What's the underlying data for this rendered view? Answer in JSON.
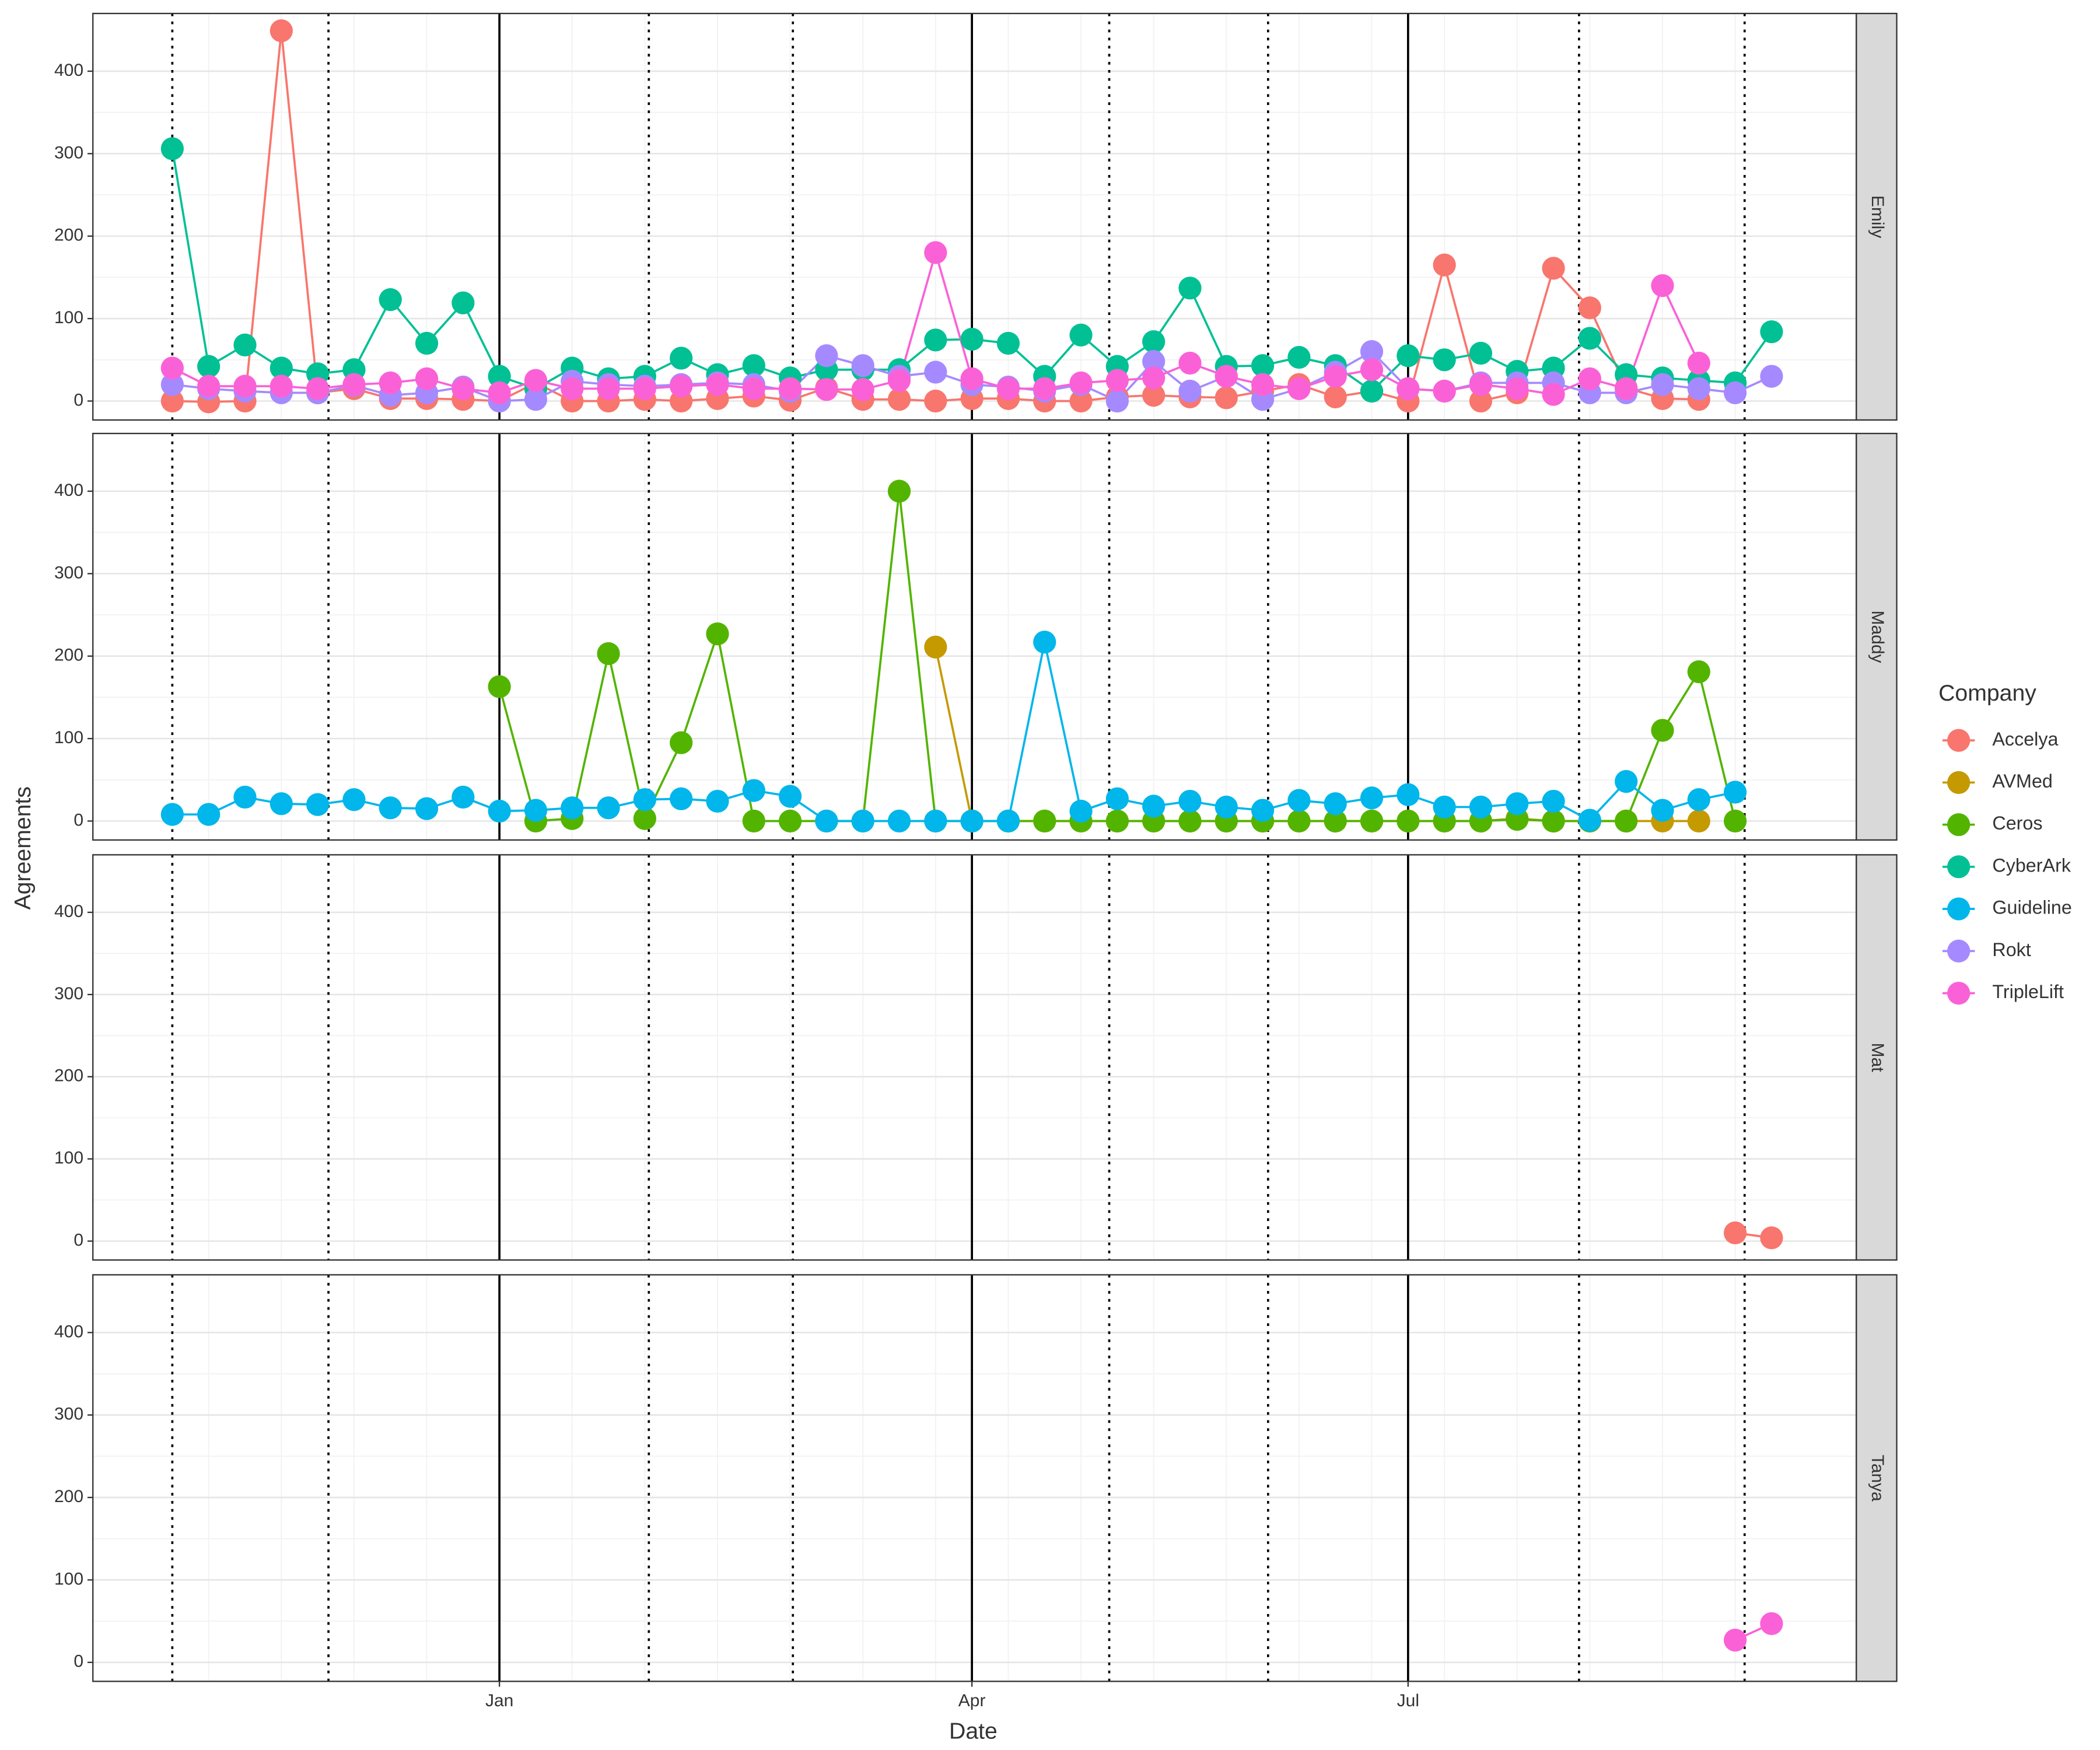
{
  "chart_data": {
    "type": "line",
    "x_label": "Date",
    "y_label": "Agreements",
    "legend_title": "Company",
    "legend": [
      {
        "name": "Accelya",
        "color": "#F8766D"
      },
      {
        "name": "AVMed",
        "color": "#C49A00"
      },
      {
        "name": "Ceros",
        "color": "#53B400"
      },
      {
        "name": "CyberArk",
        "color": "#00C094"
      },
      {
        "name": "Guideline",
        "color": "#00B6EB"
      },
      {
        "name": "Rokt",
        "color": "#A58AFF"
      },
      {
        "name": "TripleLift",
        "color": "#FB61D7"
      }
    ],
    "categories": [
      null,
      null,
      null,
      null,
      null,
      null,
      null,
      null,
      null,
      "Jan",
      null,
      null,
      null,
      null,
      null,
      null,
      null,
      null,
      null,
      null,
      null,
      null,
      "Apr",
      null,
      null,
      null,
      null,
      null,
      null,
      null,
      null,
      null,
      null,
      null,
      "Jul",
      null,
      null,
      null,
      null,
      null,
      null,
      null,
      null,
      null,
      null
    ],
    "ylim": [
      -23,
      470
    ],
    "yticks": [
      0,
      100,
      200,
      300,
      400
    ],
    "grid": true,
    "facets": [
      {
        "label": "Emily",
        "series": [
          {
            "name": "Accelya",
            "values": [
              0,
              -1,
              0,
              449,
              10,
              15,
              3,
              3,
              2,
              0,
              22,
              0,
              0,
              2,
              0,
              3,
              6,
              1,
              16,
              2,
              2,
              0,
              3,
              3,
              0,
              0,
              5,
              7,
              5,
              4,
              12,
              20,
              5,
              12,
              0,
              165,
              0,
              10,
              161,
              113,
              16,
              3,
              2,
              null,
              null
            ]
          },
          {
            "name": "CyberArk",
            "values": [
              306,
              42,
              68,
              40,
              33,
              38,
              123,
              70,
              119,
              30,
              15,
              40,
              27,
              30,
              52,
              32,
              43,
              28,
              38,
              38,
              38,
              74,
              75,
              70,
              30,
              80,
              42,
              72,
              137,
              42,
              43,
              53,
              43,
              12,
              55,
              50,
              58,
              36,
              40,
              76,
              32,
              28,
              25,
              22,
              84
            ]
          },
          {
            "name": "Rokt",
            "values": [
              20,
              15,
              12,
              10,
              10,
              19,
              7,
              10,
              17,
              0,
              2,
              24,
              20,
              18,
              20,
              22,
              20,
              12,
              55,
              43,
              30,
              35,
              20,
              17,
              12,
              20,
              0,
              48,
              12,
              30,
              2,
              15,
              35,
              60,
              15,
              12,
              22,
              22,
              22,
              10,
              10,
              20,
              15,
              10,
              30
            ]
          },
          {
            "name": "TripleLift",
            "values": [
              40,
              18,
              18,
              18,
              15,
              20,
              22,
              27,
              15,
              10,
              25,
              15,
              15,
              15,
              18,
              20,
              15,
              15,
              14,
              14,
              25,
              180,
              27,
              15,
              15,
              22,
              25,
              28,
              46,
              30,
              20,
              15,
              30,
              38,
              15,
              12,
              20,
              15,
              8,
              27,
              15,
              140,
              46,
              null,
              null
            ]
          }
        ]
      },
      {
        "label": "Maddy",
        "series": [
          {
            "name": "AVMed",
            "values": [
              null,
              null,
              null,
              null,
              null,
              null,
              null,
              null,
              null,
              null,
              null,
              null,
              null,
              null,
              null,
              null,
              null,
              null,
              null,
              null,
              null,
              211,
              0,
              0,
              0,
              0,
              0,
              0,
              0,
              0,
              0,
              0,
              0,
              0,
              0,
              0,
              0,
              3,
              0,
              0,
              0,
              0,
              0,
              null,
              null
            ]
          },
          {
            "name": "Ceros",
            "values": [
              null,
              null,
              null,
              null,
              null,
              null,
              null,
              null,
              null,
              163,
              0,
              3,
              203,
              3,
              95,
              227,
              0,
              0,
              0,
              0,
              400,
              0,
              0,
              0,
              0,
              0,
              0,
              0,
              0,
              0,
              0,
              0,
              0,
              0,
              0,
              0,
              0,
              2,
              0,
              0,
              0,
              110,
              181,
              0,
              null
            ]
          },
          {
            "name": "Guideline",
            "values": [
              8,
              8,
              29,
              21,
              20,
              26,
              16,
              15,
              29,
              12,
              13,
              16,
              16,
              26,
              27,
              24,
              37,
              30,
              0,
              0,
              0,
              0,
              0,
              0,
              217,
              12,
              27,
              18,
              24,
              17,
              13,
              25,
              21,
              28,
              32,
              17,
              17,
              21,
              24,
              1,
              48,
              13,
              26,
              35,
              null
            ]
          }
        ]
      },
      {
        "label": "Mat",
        "series": [
          {
            "name": "Accelya",
            "values": [
              null,
              null,
              null,
              null,
              null,
              null,
              null,
              null,
              null,
              null,
              null,
              null,
              null,
              null,
              null,
              null,
              null,
              null,
              null,
              null,
              null,
              null,
              null,
              null,
              null,
              null,
              null,
              null,
              null,
              null,
              null,
              null,
              null,
              null,
              null,
              null,
              null,
              null,
              null,
              null,
              null,
              null,
              null,
              10,
              4
            ]
          }
        ]
      },
      {
        "label": "Tanya",
        "series": [
          {
            "name": "TripleLift",
            "values": [
              null,
              null,
              null,
              null,
              null,
              null,
              null,
              null,
              null,
              null,
              null,
              null,
              null,
              null,
              null,
              null,
              null,
              null,
              null,
              null,
              null,
              null,
              null,
              null,
              null,
              null,
              null,
              null,
              null,
              null,
              null,
              null,
              null,
              null,
              null,
              null,
              null,
              null,
              null,
              null,
              null,
              null,
              null,
              27,
              47
            ]
          }
        ]
      }
    ]
  }
}
